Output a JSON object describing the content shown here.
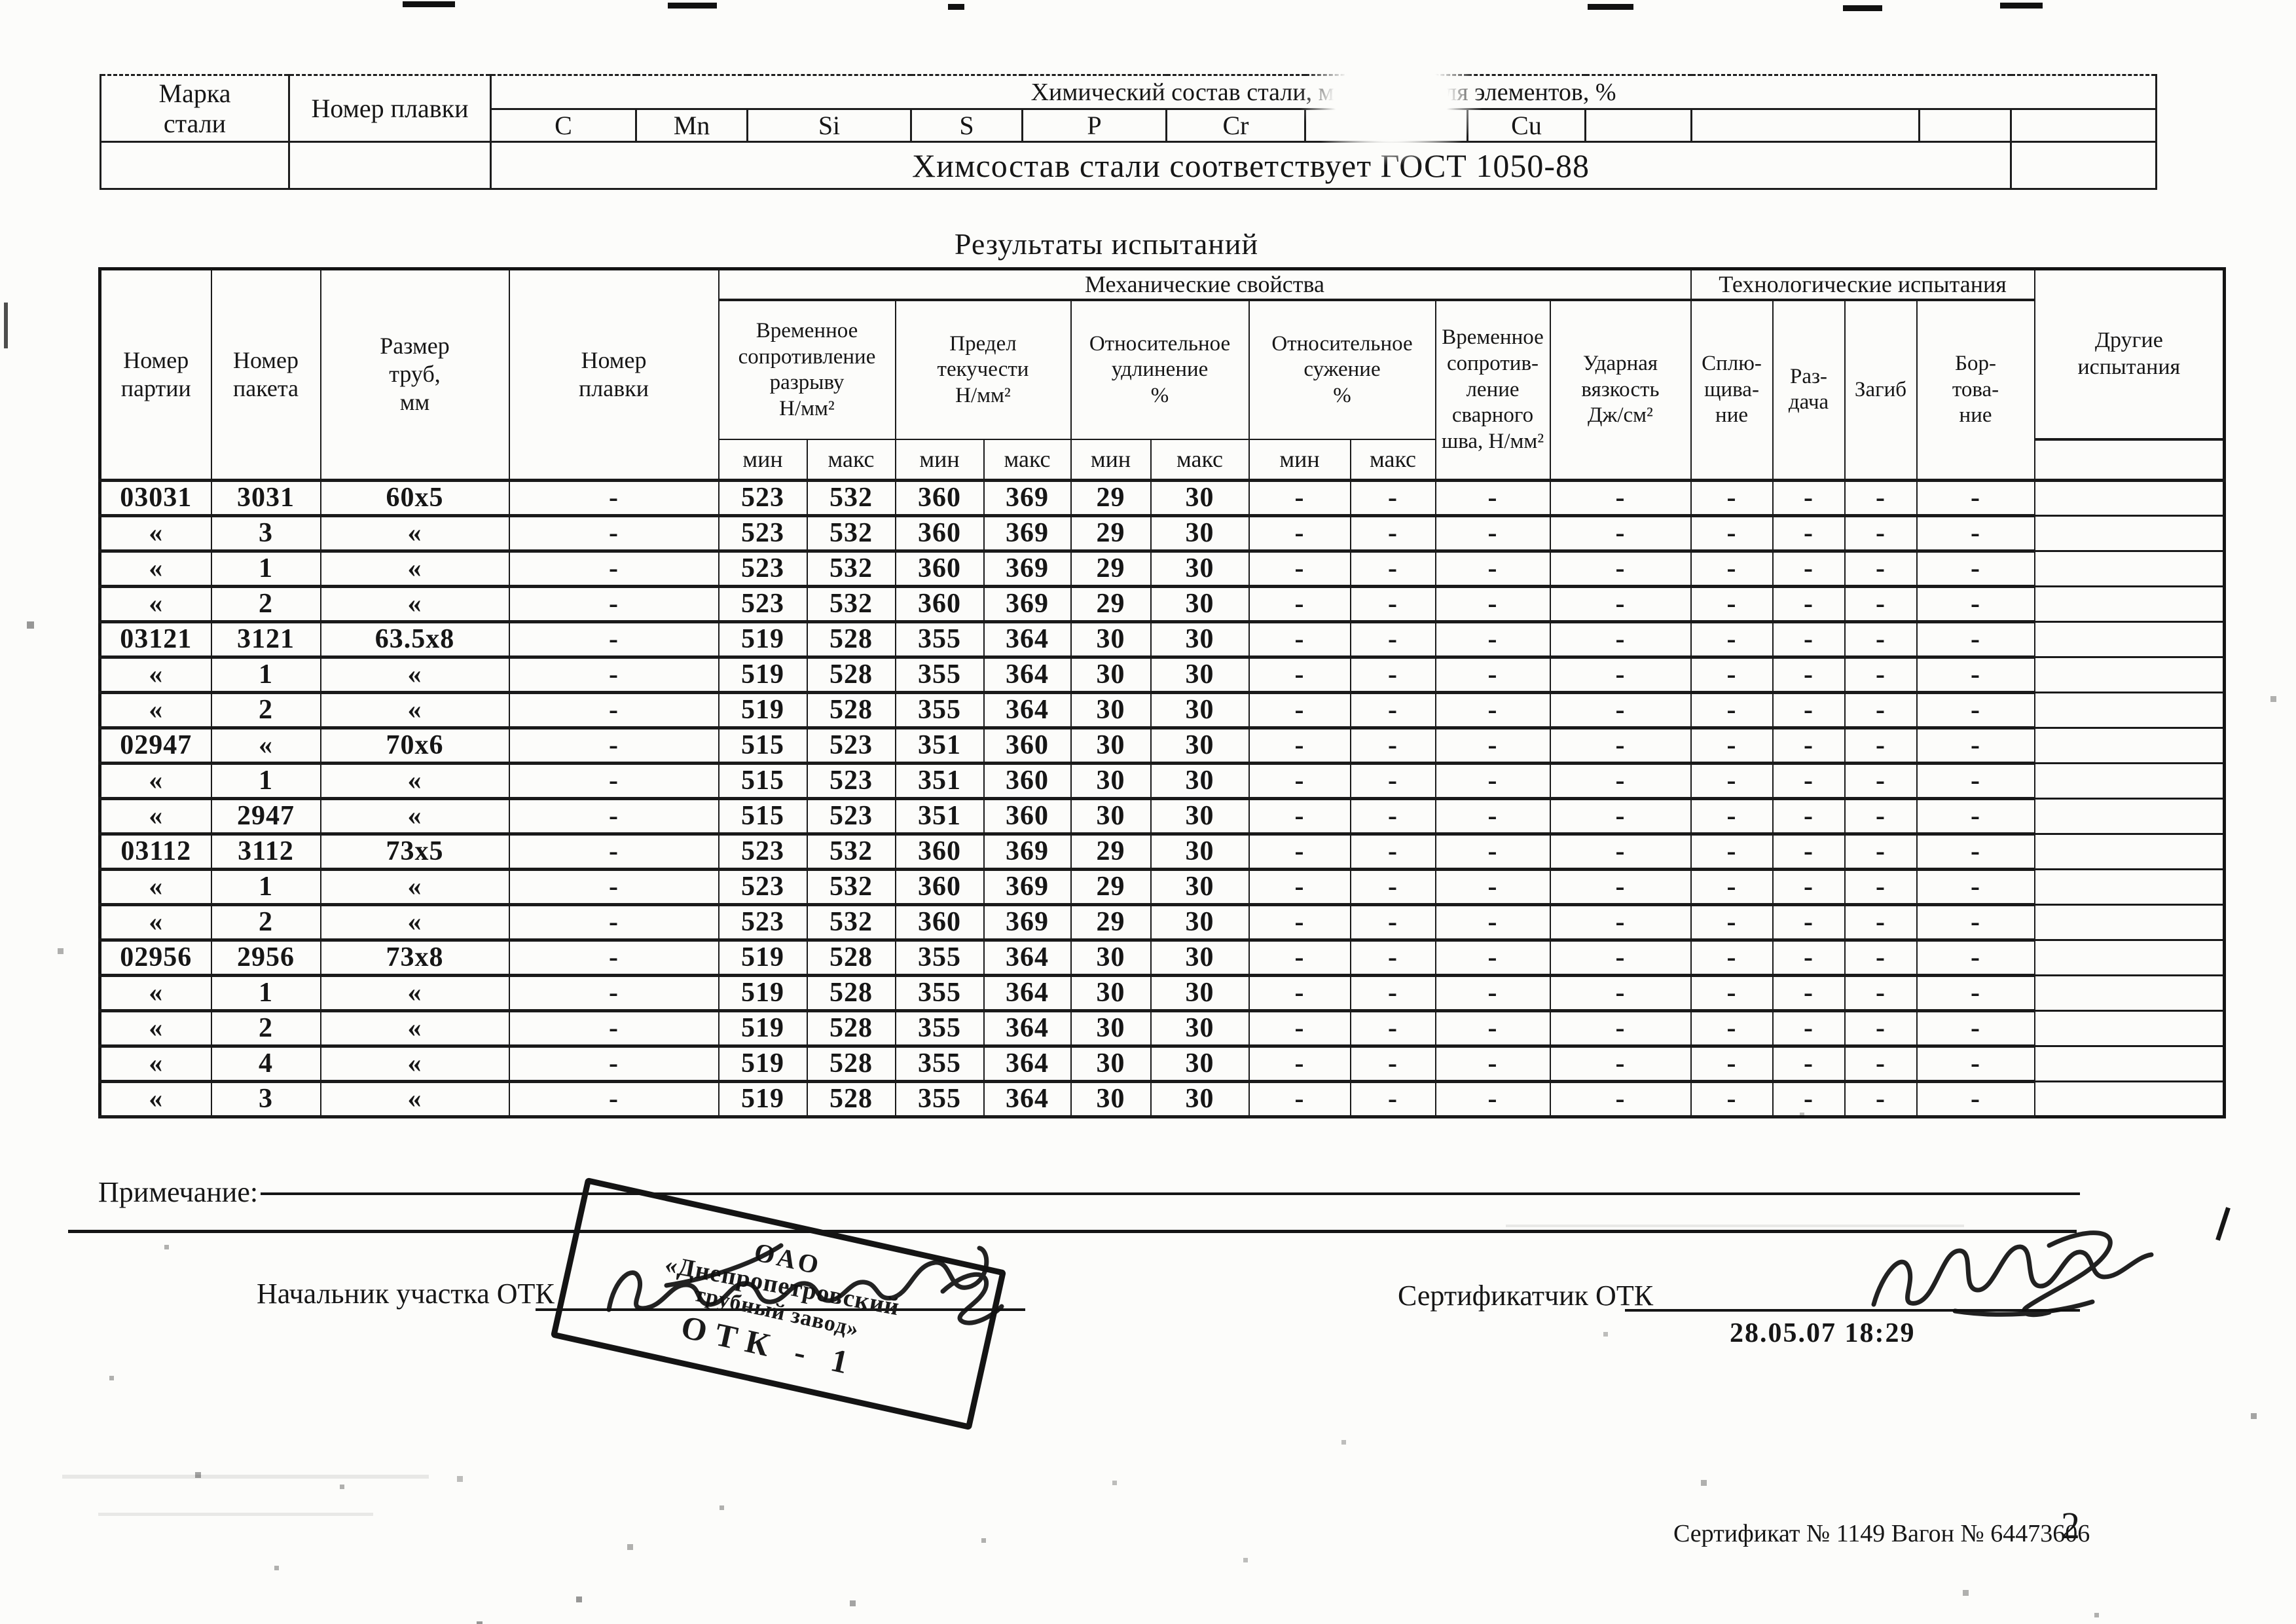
{
  "chem": {
    "grade_label": "Марка\nстали",
    "heat_label": "Номер плавки",
    "header": "Химический состав стали, массовая доля элементов, %",
    "elements": [
      "C",
      "Mn",
      "Si",
      "S",
      "P",
      "Cr",
      "",
      "Cu",
      "",
      "",
      "",
      ""
    ],
    "note": "Химсостав стали соответствует ГОСТ 1050-88"
  },
  "results": {
    "title": "Результаты испытаний",
    "groups": {
      "mech": "Механические свойства",
      "tech": "Технологические испытания"
    },
    "cols": {
      "party": "Номер\nпартии",
      "packet": "Номер\nпакета",
      "size": "Размер\nтруб,\nмм",
      "melt": "Номер\nплавки",
      "tensile": "Временное\nсопротивление\nразрыву\nН/мм²",
      "yield": "Предел\nтекучести\nН/мм²",
      "elongation": "Относительное\nудлинение\n%",
      "contraction": "Относительное\nсужение\n%",
      "weld": "Временное\nсопротив-\nление\nсварного\nшва, Н/мм²",
      "impact": "Ударная\nвязкость\nДж/см²",
      "flattening": "Сплю-\nщива-\nние",
      "expansion": "Раз-\nдача",
      "bend": "Загиб",
      "flanging": "Бор-\nтова-\nние",
      "other": "Другие\nиспытания",
      "min": "мин",
      "max": "макс"
    },
    "rows": [
      [
        "03031",
        "3031",
        "60x5",
        "-",
        "523",
        "532",
        "360",
        "369",
        "29",
        "30",
        "-",
        "-",
        "-",
        "-",
        "-",
        "-",
        "-",
        "-",
        ""
      ],
      [
        "«",
        "3",
        "«",
        "-",
        "523",
        "532",
        "360",
        "369",
        "29",
        "30",
        "-",
        "-",
        "-",
        "-",
        "-",
        "-",
        "-",
        "-",
        ""
      ],
      [
        "«",
        "1",
        "«",
        "-",
        "523",
        "532",
        "360",
        "369",
        "29",
        "30",
        "-",
        "-",
        "-",
        "-",
        "-",
        "-",
        "-",
        "-",
        ""
      ],
      [
        "«",
        "2",
        "«",
        "-",
        "523",
        "532",
        "360",
        "369",
        "29",
        "30",
        "-",
        "-",
        "-",
        "-",
        "-",
        "-",
        "-",
        "-",
        ""
      ],
      [
        "03121",
        "3121",
        "63.5x8",
        "-",
        "519",
        "528",
        "355",
        "364",
        "30",
        "30",
        "-",
        "-",
        "-",
        "-",
        "-",
        "-",
        "-",
        "-",
        ""
      ],
      [
        "«",
        "1",
        "«",
        "-",
        "519",
        "528",
        "355",
        "364",
        "30",
        "30",
        "-",
        "-",
        "-",
        "-",
        "-",
        "-",
        "-",
        "-",
        ""
      ],
      [
        "«",
        "2",
        "«",
        "-",
        "519",
        "528",
        "355",
        "364",
        "30",
        "30",
        "-",
        "-",
        "-",
        "-",
        "-",
        "-",
        "-",
        "-",
        ""
      ],
      [
        "02947",
        "«",
        "70x6",
        "-",
        "515",
        "523",
        "351",
        "360",
        "30",
        "30",
        "-",
        "-",
        "-",
        "-",
        "-",
        "-",
        "-",
        "-",
        ""
      ],
      [
        "«",
        "1",
        "«",
        "-",
        "515",
        "523",
        "351",
        "360",
        "30",
        "30",
        "-",
        "-",
        "-",
        "-",
        "-",
        "-",
        "-",
        "-",
        ""
      ],
      [
        "«",
        "2947",
        "«",
        "-",
        "515",
        "523",
        "351",
        "360",
        "30",
        "30",
        "-",
        "-",
        "-",
        "-",
        "-",
        "-",
        "-",
        "-",
        ""
      ],
      [
        "03112",
        "3112",
        "73x5",
        "-",
        "523",
        "532",
        "360",
        "369",
        "29",
        "30",
        "-",
        "-",
        "-",
        "-",
        "-",
        "-",
        "-",
        "-",
        ""
      ],
      [
        "«",
        "1",
        "«",
        "-",
        "523",
        "532",
        "360",
        "369",
        "29",
        "30",
        "-",
        "-",
        "-",
        "-",
        "-",
        "-",
        "-",
        "-",
        ""
      ],
      [
        "«",
        "2",
        "«",
        "-",
        "523",
        "532",
        "360",
        "369",
        "29",
        "30",
        "-",
        "-",
        "-",
        "-",
        "-",
        "-",
        "-",
        "-",
        ""
      ],
      [
        "02956",
        "2956",
        "73x8",
        "-",
        "519",
        "528",
        "355",
        "364",
        "30",
        "30",
        "-",
        "-",
        "-",
        "-",
        "-",
        "-",
        "-",
        "-",
        ""
      ],
      [
        "«",
        "1",
        "«",
        "-",
        "519",
        "528",
        "355",
        "364",
        "30",
        "30",
        "-",
        "-",
        "-",
        "-",
        "-",
        "-",
        "-",
        "-",
        ""
      ],
      [
        "«",
        "2",
        "«",
        "-",
        "519",
        "528",
        "355",
        "364",
        "30",
        "30",
        "-",
        "-",
        "-",
        "-",
        "-",
        "-",
        "-",
        "-",
        ""
      ],
      [
        "«",
        "4",
        "«",
        "-",
        "519",
        "528",
        "355",
        "364",
        "30",
        "30",
        "-",
        "-",
        "-",
        "-",
        "-",
        "-",
        "-",
        "-",
        ""
      ],
      [
        "«",
        "3",
        "«",
        "-",
        "519",
        "528",
        "355",
        "364",
        "30",
        "30",
        "-",
        "-",
        "-",
        "-",
        "-",
        "-",
        "-",
        "-",
        ""
      ]
    ]
  },
  "footer": {
    "note_label": "Примечание:",
    "chief_label": "Начальник участка ОТК",
    "certifier_label": "Сертификатчик ОТК",
    "date": "28.05.07 18:29",
    "stamp": {
      "l1": "ОАО",
      "l2": "«Днепропетровский",
      "l3": "трубный завод»",
      "l4": "ОТК - 1"
    },
    "cert_line": "Сертификат № 1149 Вагон № 64473606",
    "page_number": "2"
  }
}
